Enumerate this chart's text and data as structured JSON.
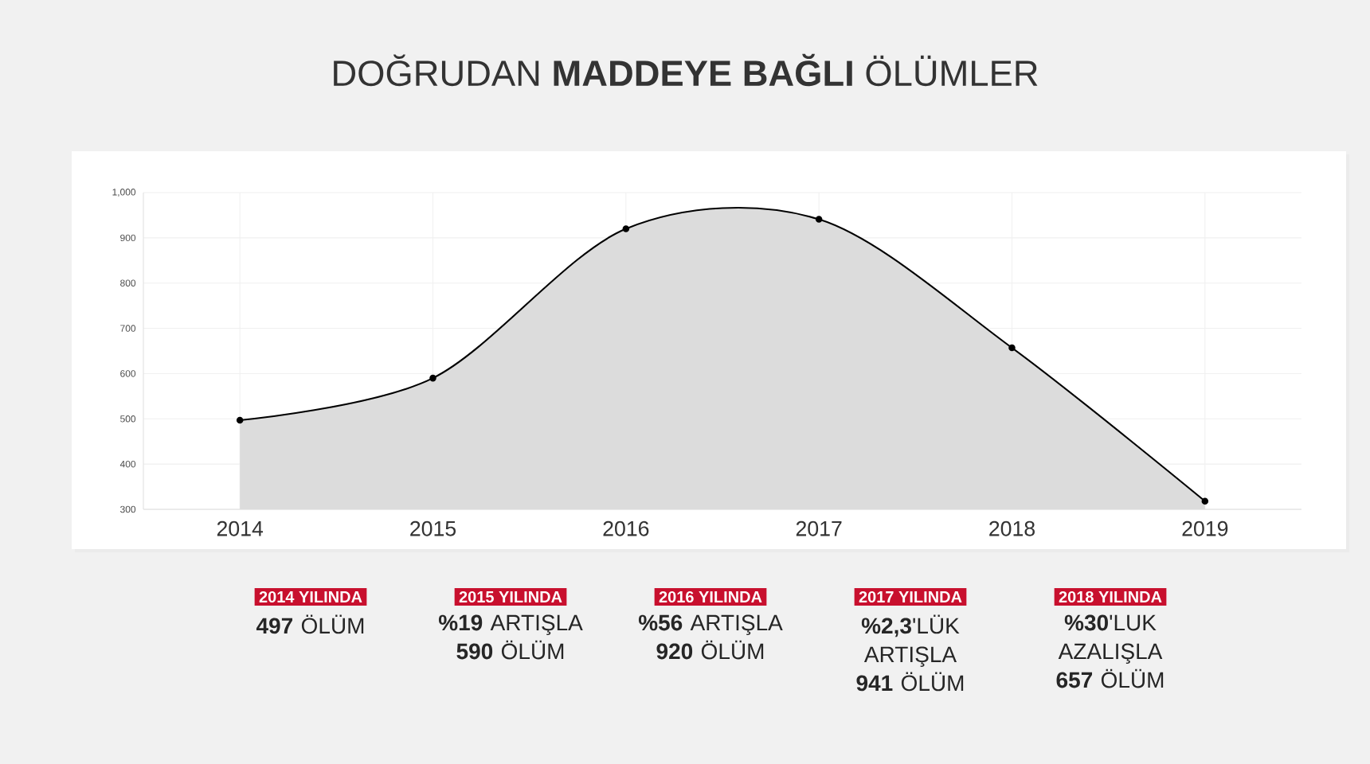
{
  "chart_data": {
    "type": "area",
    "title": "DOĞRUDAN **MADDEYE BAĞLI** ÖLÜMLER",
    "categories": [
      "2014",
      "2015",
      "2016",
      "2017",
      "2018",
      "2019"
    ],
    "series": [
      {
        "color": "#dcdcdc",
        "values": [
          497,
          590,
          920,
          941,
          657,
          318
        ]
      }
    ],
    "ylim": [
      300,
      1000
    ],
    "yticks": [
      300,
      400,
      500,
      600,
      700,
      800,
      900,
      {
        "value": 1000,
        "label": "1,000"
      }
    ],
    "grid": true,
    "marker": "circle",
    "line_style": "solid",
    "annotations": [
      "2014 YILINDA",
      "**497** ÖLÜM",
      "2015 YILINDA",
      "**%19** ARTIŞLA **590** ÖLÜM",
      "2016 YILINDA",
      "**%56** ARTIŞLA **920** ÖLÜM",
      "2017 YILINDA",
      "**%2,3**'LÜK ARTIŞLA **941** ÖLÜM",
      "2018 YILINDA",
      "**%30**'LUK AZALIŞLA **657** ÖLÜM"
    ]
  }
}
